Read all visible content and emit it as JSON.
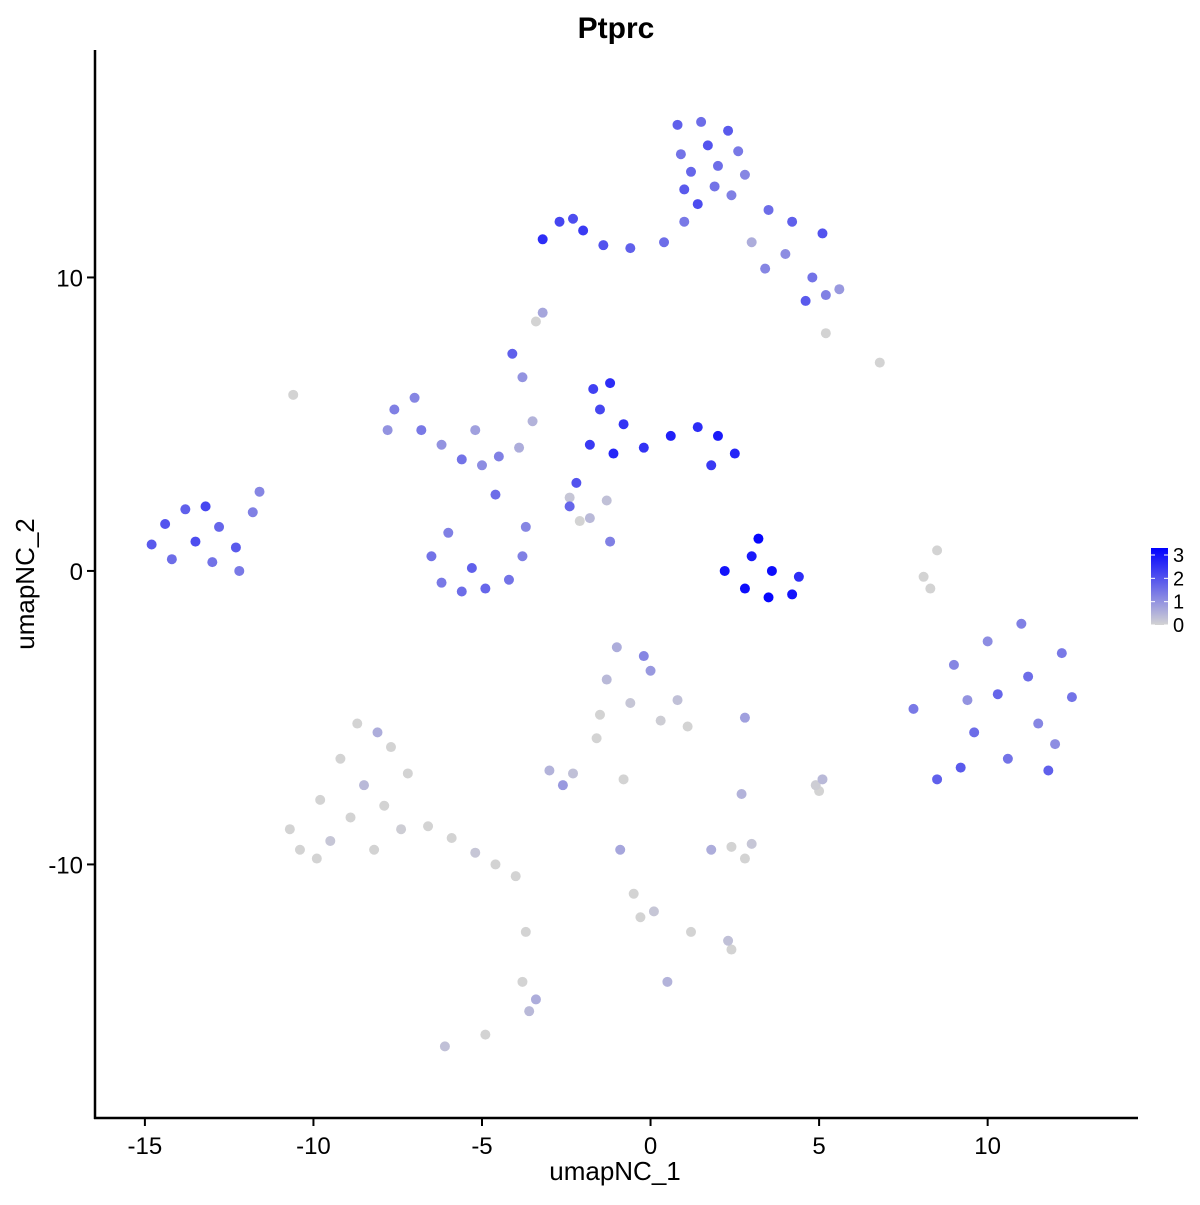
{
  "chart_data": {
    "type": "scatter",
    "title": "Ptprc",
    "x_label": "umapNC_1",
    "y_label": "umapNC_2",
    "xlim": [
      -16.48,
      14.46
    ],
    "ylim": [
      -18.64,
      17.75
    ],
    "xticks": [
      -15,
      -10,
      -5,
      0,
      5,
      10
    ],
    "yticks": [
      -10,
      0,
      10
    ],
    "color_low": "#d3d3d3",
    "color_high": "#0000ff",
    "clim": [
      0,
      3.3
    ],
    "cticks": [
      0,
      1,
      2,
      3
    ],
    "legend": "right",
    "x": [
      0.8,
      1.5,
      2.3,
      0.9,
      1.7,
      2.6,
      1.2,
      2.0,
      2.8,
      1.0,
      1.9,
      1.4,
      2.4,
      -3.2,
      -2.7,
      -2.0,
      -1.4,
      -0.6,
      0.4,
      1.0,
      -2.3,
      3.5,
      4.2,
      5.1,
      4.0,
      4.8,
      5.6,
      4.6,
      5.2,
      3.4,
      3.0,
      -14.8,
      -14.4,
      -13.8,
      -13.2,
      -14.2,
      -13.5,
      -12.8,
      -12.3,
      -13.0,
      -12.2,
      -11.8,
      -11.6,
      -7.6,
      -7.0,
      -6.8,
      -6.2,
      -5.6,
      -5.0,
      -4.5,
      -5.2,
      -4.1,
      -3.8,
      -3.5,
      -3.9,
      -6.5,
      -6.2,
      -5.6,
      -4.9,
      -4.2,
      -3.8,
      -3.7,
      -4.6,
      -6.0,
      -5.3,
      -1.7,
      -1.2,
      -1.5,
      -0.8,
      -1.8,
      -1.1,
      -0.2,
      0.6,
      1.4,
      2.0,
      2.5,
      1.8,
      -2.2,
      -2.4,
      -1.3,
      2.2,
      2.8,
      3.5,
      4.2,
      4.4,
      3.2,
      3.0,
      3.6,
      7.8,
      8.5,
      9.0,
      9.6,
      9.2,
      10.0,
      10.3,
      10.6,
      11.0,
      11.2,
      11.5,
      11.8,
      12.2,
      12.5,
      12.0,
      9.4,
      -10.7,
      -10.4,
      -9.8,
      -9.5,
      -9.2,
      -8.9,
      -8.7,
      -8.5,
      -8.2,
      -7.9,
      -7.7,
      -7.4,
      -7.2,
      -6.6,
      -5.9,
      -5.2,
      -4.6,
      -4.0,
      -8.1,
      -9.9,
      -1.3,
      -1.0,
      -0.6,
      0.0,
      0.3,
      0.8,
      1.1,
      -0.2,
      -1.5,
      -3.0,
      -2.6,
      -2.3,
      -1.6,
      -0.8,
      1.8,
      2.4,
      3.0,
      2.8,
      -0.9,
      -0.5,
      -0.3,
      0.1,
      1.2,
      2.3,
      2.4,
      -3.8,
      -3.6,
      -3.4,
      -3.7,
      -6.1,
      -4.9,
      0.5,
      5.1,
      5.0,
      4.9,
      2.8,
      2.7,
      8.3,
      8.5,
      8.1,
      6.8,
      5.2,
      -3.2,
      -10.6,
      -3.4,
      -2.4,
      -2.1,
      -1.2,
      -1.8,
      -7.8
    ],
    "y": [
      15.2,
      15.3,
      15.0,
      14.2,
      14.5,
      14.3,
      13.6,
      13.8,
      13.5,
      13.0,
      13.1,
      12.5,
      12.8,
      11.3,
      11.9,
      11.6,
      11.1,
      11.0,
      11.2,
      11.9,
      12.0,
      12.3,
      11.9,
      11.5,
      10.8,
      10.0,
      9.6,
      9.2,
      9.4,
      10.3,
      11.2,
      0.9,
      1.6,
      2.1,
      2.2,
      0.4,
      1.0,
      1.5,
      0.8,
      0.3,
      0.0,
      2.0,
      2.7,
      5.5,
      5.9,
      4.8,
      4.3,
      3.8,
      3.6,
      3.9,
      4.8,
      7.4,
      6.6,
      5.1,
      4.2,
      0.5,
      -0.4,
      -0.7,
      -0.6,
      -0.3,
      0.5,
      1.5,
      2.6,
      1.3,
      0.1,
      6.2,
      6.4,
      5.5,
      5.0,
      4.3,
      4.0,
      4.2,
      4.6,
      4.9,
      4.6,
      4.0,
      3.6,
      3.0,
      2.2,
      2.4,
      0.0,
      -0.6,
      -0.9,
      -0.8,
      -0.2,
      1.1,
      0.5,
      0.0,
      -4.7,
      -7.1,
      -3.2,
      -5.5,
      -6.7,
      -2.4,
      -4.2,
      -6.4,
      -1.8,
      -3.6,
      -5.2,
      -6.8,
      -2.8,
      -4.3,
      -5.9,
      -4.4,
      -8.8,
      -9.5,
      -7.8,
      -9.2,
      -6.4,
      -8.4,
      -5.2,
      -7.3,
      -9.5,
      -8.0,
      -6.0,
      -8.8,
      -6.9,
      -8.7,
      -9.1,
      -9.6,
      -10.0,
      -10.4,
      -5.5,
      -9.8,
      -3.7,
      -2.6,
      -4.5,
      -3.4,
      -5.1,
      -4.4,
      -5.3,
      -2.9,
      -4.9,
      -6.8,
      -7.3,
      -6.9,
      -5.7,
      -7.1,
      -9.5,
      -9.4,
      -9.3,
      -9.8,
      -9.5,
      -11.0,
      -11.8,
      -11.6,
      -12.3,
      -12.6,
      -12.9,
      -14.0,
      -15.0,
      -14.6,
      -12.3,
      -16.2,
      -15.8,
      -14.0,
      -7.1,
      -7.5,
      -7.3,
      -5.0,
      -7.6,
      -0.6,
      0.7,
      -0.2,
      7.1,
      8.1,
      8.8,
      6.0,
      8.5,
      2.5,
      1.7,
      1.0,
      1.8,
      4.8
    ],
    "values": [
      1.8,
      1.6,
      1.9,
      1.5,
      2.0,
      1.4,
      1.7,
      1.6,
      1.2,
      1.9,
      1.5,
      2.1,
      1.3,
      2.6,
      2.2,
      2.4,
      2.0,
      1.8,
      1.6,
      1.4,
      2.1,
      1.6,
      1.8,
      2.0,
      1.1,
      1.5,
      0.9,
      1.9,
      1.3,
      1.2,
      0.6,
      1.9,
      2.0,
      1.8,
      2.2,
      1.6,
      2.1,
      1.7,
      1.9,
      1.5,
      1.4,
      1.3,
      1.2,
      1.3,
      1.2,
      1.4,
      1.0,
      1.5,
      1.1,
      1.3,
      0.8,
      1.8,
      1.0,
      0.5,
      0.6,
      1.5,
      1.4,
      1.6,
      1.7,
      1.5,
      1.3,
      1.2,
      1.6,
      1.3,
      1.8,
      2.3,
      2.6,
      2.2,
      2.5,
      2.4,
      2.7,
      2.5,
      2.8,
      2.6,
      2.9,
      2.7,
      2.4,
      2.0,
      1.7,
      0.3,
      3.0,
      3.1,
      3.2,
      3.0,
      2.6,
      3.2,
      2.9,
      3.1,
      1.4,
      1.8,
      1.2,
      1.6,
      1.9,
      1.1,
      1.7,
      1.5,
      1.3,
      1.6,
      1.2,
      1.8,
      1.4,
      1.5,
      1.1,
      1.0,
      0,
      0,
      0,
      0.2,
      0,
      0,
      0,
      0.4,
      0,
      0,
      0,
      0.1,
      0,
      0,
      0,
      0.2,
      0,
      0,
      0.6,
      0,
      0.4,
      0.6,
      0.2,
      0.9,
      0.1,
      0.3,
      0,
      1.2,
      0,
      0.5,
      0.9,
      0.3,
      0,
      0,
      0.6,
      0,
      0.2,
      0,
      0.7,
      0,
      0,
      0.2,
      0,
      0.3,
      0,
      0,
      0.4,
      0.6,
      0,
      0.3,
      0,
      0.5,
      0.4,
      0,
      0.1,
      0.8,
      0.5,
      0,
      0,
      0,
      0,
      0,
      0.7,
      0,
      0,
      0.2,
      0,
      1.3,
      0.4,
      1.0
    ]
  }
}
